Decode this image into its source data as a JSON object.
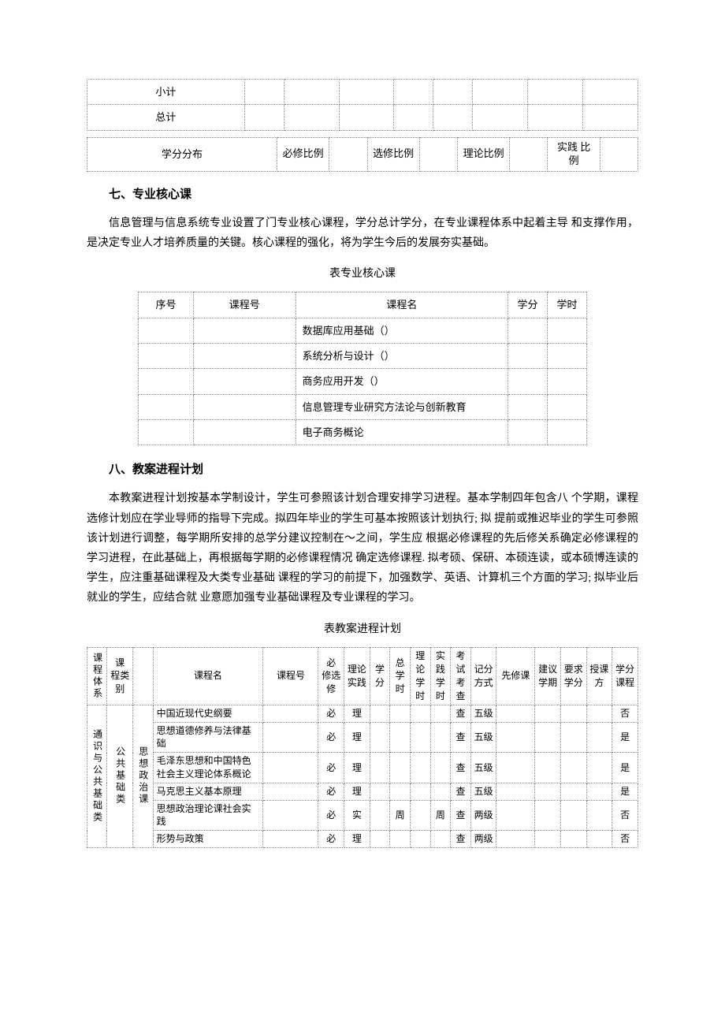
{
  "table1": {
    "row1_label": "小计",
    "row2_label": "总计"
  },
  "table2": {
    "dist_label": "学分分布",
    "r1": "必修比例",
    "r2": "选修比例",
    "r3": "理论比例",
    "r4": "实践 比例"
  },
  "h7": "七、专业核心课",
  "p7": "信息管理与信息系统专业设置了门专业核心课程，学分总计学分，在专业课程体系中起着主导 和支撑作用，是决定专业人才培养质量的关键。核心课程的强化，将为学生今后的发展夯实基础。",
  "cap3": "表专业核心课",
  "t3head": {
    "seq": "序号",
    "num": "课程号",
    "name": "课程名",
    "cred": "学分",
    "hrs": "学时"
  },
  "t3rows": [
    "数据库应用基础（）",
    "系统分析与设计（）",
    "商务应用开发（）",
    "信息管理专业研究方法论与创新教育",
    "电子商务概论"
  ],
  "h8": "八、教案进程计划",
  "p8": "本教案进程计划按基本学制设计，学生可参照该计划合理安排学习进程。基本学制四年包含八 个学期，课程选修计划应在学业导师的指导下完成。拟四年毕业的学生可基本按照该计划执行; 拟 提前或推迟毕业的学生可参照该计划进行调整，每学期所安排的总学分建议控制在～之间，学生应 根据必修课程的先后修关系确定必修课程的学习进程，在此基础上，再根据每学期的必修课程情况 确定选修课程. 拟考硕、保研、本硕连读，或本硕博连读的学生，应注重基础课程及大类专业基础 课程的学习的前提下，加强数学、英语、计算机三个方面的学习; 拟毕业后就业的学生，应结合就 业意愿加强专业基础课程及专业课程的学习。",
  "cap4": "表教案进程计划",
  "t4head": {
    "c1": "课程体系",
    "c2": "课 程类 别",
    "c3": "",
    "c4": "课程名",
    "c5": "课程号",
    "c6": "必 修选 修",
    "c7": "理论 实践",
    "c8": "学分",
    "c9": "总学时",
    "c10": "理论学时",
    "c11": "实践学时",
    "c12": "考试考查",
    "c13": "记分方式",
    "c14": "先修课",
    "c15": "建议学期",
    "c16": "要求学分",
    "c17": "授课方",
    "c18": "学分课程"
  },
  "t4group": {
    "sys": "通识与公共基础类",
    "cat": "公共基础类",
    "sub": "思想政治课"
  },
  "t4rows": [
    {
      "name": "中国近现代史纲要",
      "req": "必",
      "type": "理",
      "tot": "",
      "prac": "",
      "exam": "查",
      "grade": "五级",
      "split": "否"
    },
    {
      "name": "思想道德修养与法律基础",
      "req": "必",
      "type": "理",
      "tot": "",
      "prac": "",
      "exam": "查",
      "grade": "五级",
      "split": "是"
    },
    {
      "name": "毛泽东思想和中国特色社会主义理论体系概论",
      "req": "必",
      "type": "理",
      "tot": "",
      "prac": "",
      "exam": "查",
      "grade": "五级",
      "split": "是"
    },
    {
      "name": "马克思主义基本原理",
      "req": "必",
      "type": "理",
      "tot": "",
      "prac": "",
      "exam": "查",
      "grade": "五级",
      "split": "是"
    },
    {
      "name": "思想政治理论课社会实践",
      "req": "必",
      "type": "实",
      "tot": "周",
      "prac": "周",
      "exam": "查",
      "grade": "两级",
      "split": "否"
    },
    {
      "name": "形势与政策",
      "req": "必",
      "type": "理",
      "tot": "",
      "prac": "",
      "exam": "查",
      "grade": "两级",
      "split": "否"
    }
  ]
}
